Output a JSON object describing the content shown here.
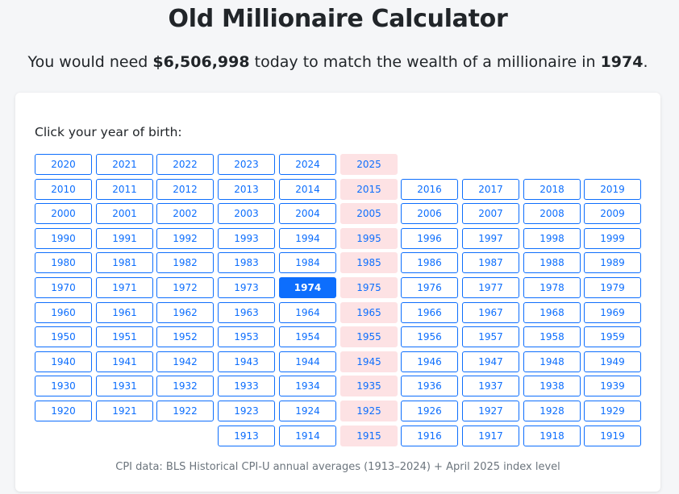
{
  "header": {
    "title": "Old Millionaire Calculator"
  },
  "summary": {
    "prefix": "You would need ",
    "amount": "$6,506,998",
    "middle": " today to match the wealth of a millionaire in ",
    "year": "1974",
    "suffix": "."
  },
  "picker": {
    "prompt": "Click your year of birth:",
    "selected_year": "1974",
    "highlight_column_index": 5,
    "rows": [
      [
        "2020",
        "2021",
        "2022",
        "2023",
        "2024",
        "2025",
        "",
        "",
        "",
        ""
      ],
      [
        "2010",
        "2011",
        "2012",
        "2013",
        "2014",
        "2015",
        "2016",
        "2017",
        "2018",
        "2019"
      ],
      [
        "2000",
        "2001",
        "2002",
        "2003",
        "2004",
        "2005",
        "2006",
        "2007",
        "2008",
        "2009"
      ],
      [
        "1990",
        "1991",
        "1992",
        "1993",
        "1994",
        "1995",
        "1996",
        "1997",
        "1998",
        "1999"
      ],
      [
        "1980",
        "1981",
        "1982",
        "1983",
        "1984",
        "1985",
        "1986",
        "1987",
        "1988",
        "1989"
      ],
      [
        "1970",
        "1971",
        "1972",
        "1973",
        "1974",
        "1975",
        "1976",
        "1977",
        "1978",
        "1979"
      ],
      [
        "1960",
        "1961",
        "1962",
        "1963",
        "1964",
        "1965",
        "1966",
        "1967",
        "1968",
        "1969"
      ],
      [
        "1950",
        "1951",
        "1952",
        "1953",
        "1954",
        "1955",
        "1956",
        "1957",
        "1958",
        "1959"
      ],
      [
        "1940",
        "1941",
        "1942",
        "1943",
        "1944",
        "1945",
        "1946",
        "1947",
        "1948",
        "1949"
      ],
      [
        "1930",
        "1931",
        "1932",
        "1933",
        "1934",
        "1935",
        "1936",
        "1937",
        "1938",
        "1939"
      ],
      [
        "1920",
        "1921",
        "1922",
        "1923",
        "1924",
        "1925",
        "1926",
        "1927",
        "1928",
        "1929"
      ],
      [
        "",
        "",
        "",
        "1913",
        "1914",
        "1915",
        "1916",
        "1917",
        "1918",
        "1919"
      ]
    ]
  },
  "footer": {
    "note": "CPI data: BLS Historical CPI-U annual averages (1913–2024) + April 2025 index level"
  },
  "colors": {
    "accent": "#0d6efd",
    "highlight_column": "#fde2e4"
  }
}
